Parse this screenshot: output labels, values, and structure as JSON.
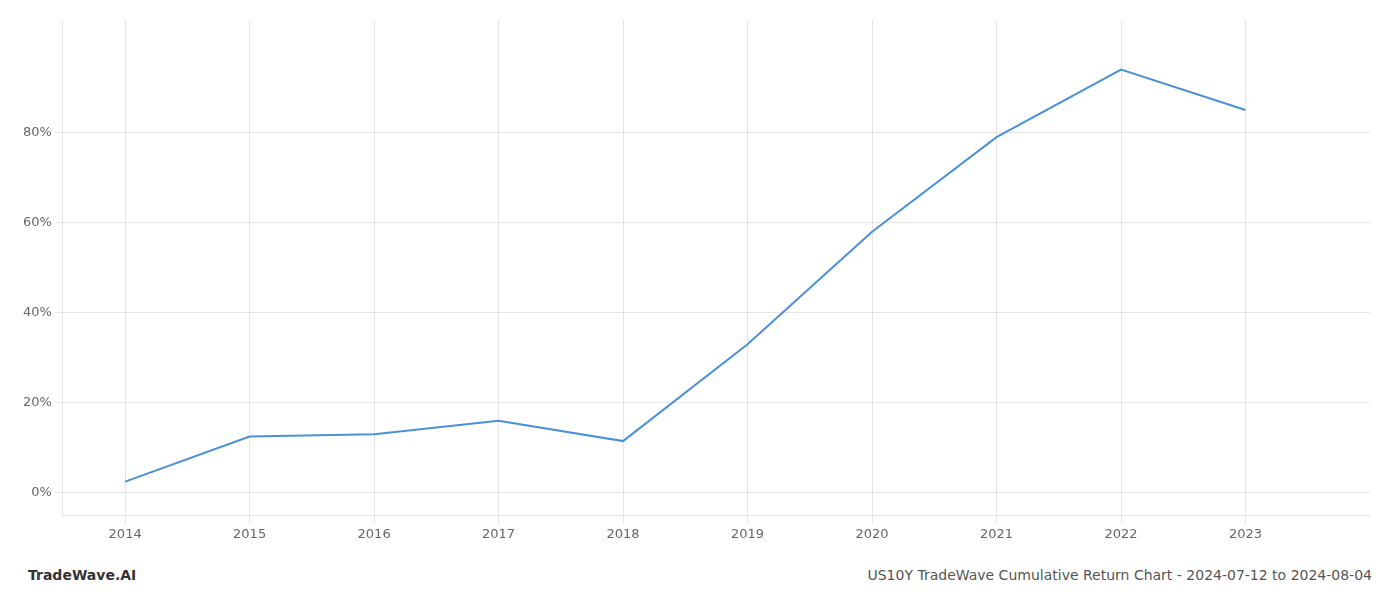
{
  "chart_data": {
    "type": "line",
    "x": [
      2014,
      2015,
      2016,
      2017,
      2018,
      2019,
      2020,
      2021,
      2022,
      2023
    ],
    "values": [
      2.5,
      12.5,
      13.0,
      16.0,
      11.5,
      33.0,
      58.0,
      79.0,
      94.0,
      85.0
    ],
    "color": "#4a90d9",
    "xlim": [
      2013.5,
      2024.0
    ],
    "ylim": [
      -5,
      105
    ],
    "xticks": [
      2014,
      2015,
      2016,
      2017,
      2018,
      2019,
      2020,
      2021,
      2022,
      2023
    ],
    "yticks": [
      {
        "value": 0,
        "label": "0%"
      },
      {
        "value": 20,
        "label": "20%"
      },
      {
        "value": 40,
        "label": "40%"
      },
      {
        "value": 60,
        "label": "60%"
      },
      {
        "value": 80,
        "label": "80%"
      }
    ],
    "grid": true,
    "annotations": [
      "TradeWave.AI",
      "US10Y TradeWave Cumulative Return Chart - 2024-07-12 to 2024-08-04"
    ]
  }
}
